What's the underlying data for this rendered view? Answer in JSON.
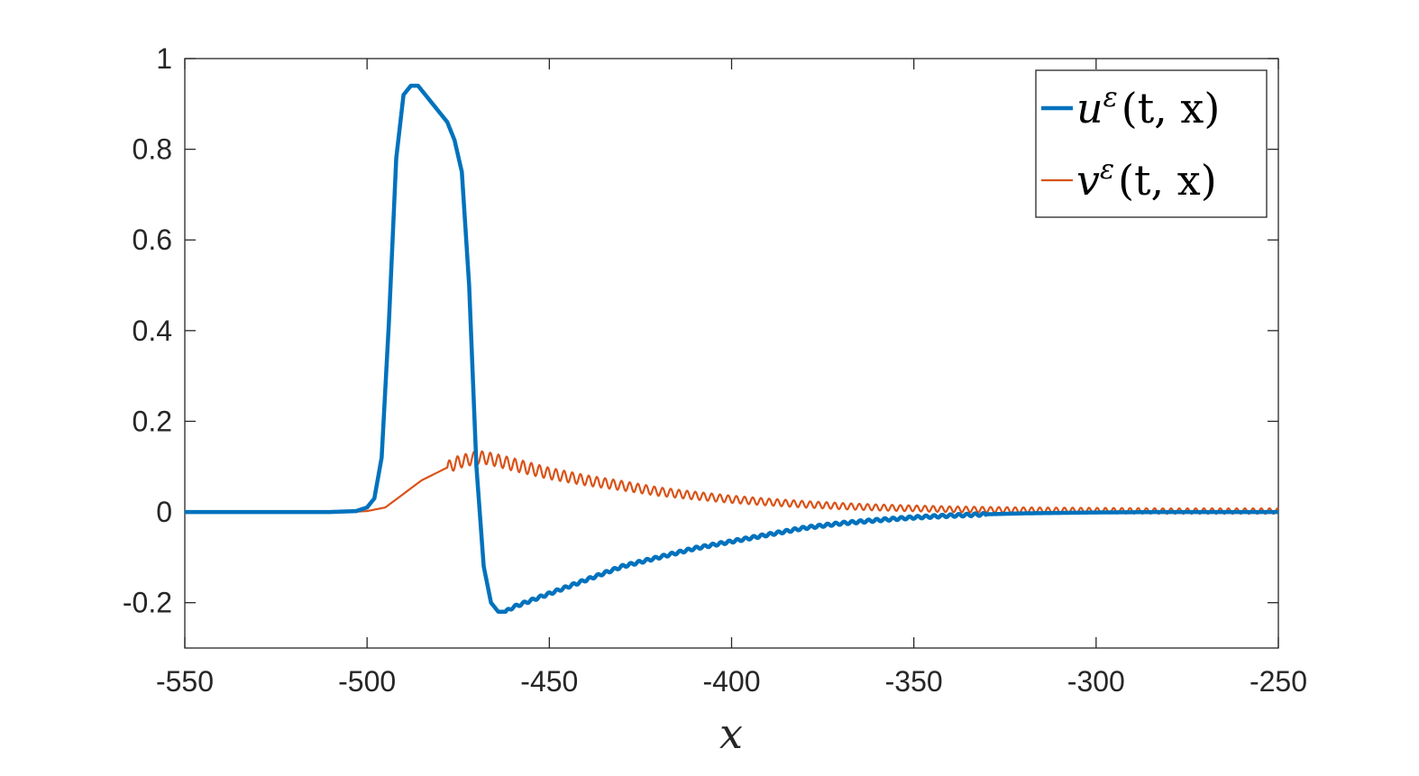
{
  "chart_data": {
    "type": "line",
    "xlabel": "x",
    "ylabel": "",
    "title": "",
    "xlim": [
      -550,
      -250
    ],
    "ylim": [
      -0.3,
      1
    ],
    "grid": false,
    "legend_position": "top-right",
    "x_ticks": [
      -550,
      -500,
      -450,
      -400,
      -350,
      -300,
      -250
    ],
    "y_ticks": [
      -0.2,
      0,
      0.2,
      0.4,
      0.6,
      0.8,
      1
    ],
    "x_tick_labels": [
      "-550",
      "-500",
      "-450",
      "-400",
      "-350",
      "-300",
      "-250"
    ],
    "y_tick_labels": [
      "-0.2",
      "0",
      "0.2",
      "0.4",
      "0.6",
      "0.8",
      "1"
    ],
    "series": [
      {
        "name": "u^ε(t,x)",
        "legend": {
          "var": "u",
          "sup": "ε",
          "args": "(t, x)"
        },
        "color": "#0072BD",
        "style": "thick",
        "x": [
          -550,
          -510,
          -503,
          -500,
          -498,
          -496,
          -494,
          -492,
          -490,
          -488,
          -486,
          -484,
          -482,
          -480,
          -478,
          -476,
          -474,
          -472,
          -470,
          -468,
          -466,
          -464,
          -462,
          -460,
          -450,
          -440,
          -430,
          -420,
          -410,
          -400,
          -390,
          -380,
          -370,
          -360,
          -350,
          -340,
          -330,
          -320,
          -310,
          -300,
          -280,
          -250
        ],
        "y": [
          0,
          0,
          0.002,
          0.01,
          0.03,
          0.12,
          0.42,
          0.78,
          0.92,
          0.94,
          0.94,
          0.92,
          0.9,
          0.88,
          0.86,
          0.82,
          0.75,
          0.5,
          0.1,
          -0.12,
          -0.2,
          -0.22,
          -0.22,
          -0.21,
          -0.18,
          -0.15,
          -0.12,
          -0.1,
          -0.08,
          -0.065,
          -0.05,
          -0.035,
          -0.025,
          -0.018,
          -0.012,
          -0.008,
          -0.005,
          -0.003,
          -0.002,
          -0.001,
          0,
          0
        ]
      },
      {
        "name": "v^ε(t,x)",
        "legend": {
          "var": "v",
          "sup": "ε",
          "args": "(t, x)"
        },
        "color": "#D95319",
        "style": "thin",
        "x": [
          -550,
          -505,
          -500,
          -495,
          -490,
          -485,
          -480,
          -475,
          -470,
          -468,
          -465,
          -460,
          -450,
          -440,
          -430,
          -420,
          -410,
          -400,
          -390,
          -380,
          -370,
          -360,
          -350,
          -340,
          -330,
          -320,
          -300,
          -280,
          -250
        ],
        "y": [
          0,
          0,
          0.002,
          0.01,
          0.04,
          0.07,
          0.09,
          0.11,
          0.12,
          0.12,
          0.115,
          0.105,
          0.085,
          0.07,
          0.058,
          0.045,
          0.036,
          0.028,
          0.022,
          0.017,
          0.013,
          0.01,
          0.008,
          0.006,
          0.005,
          0.004,
          0.003,
          0.002,
          0.002
        ]
      }
    ]
  }
}
